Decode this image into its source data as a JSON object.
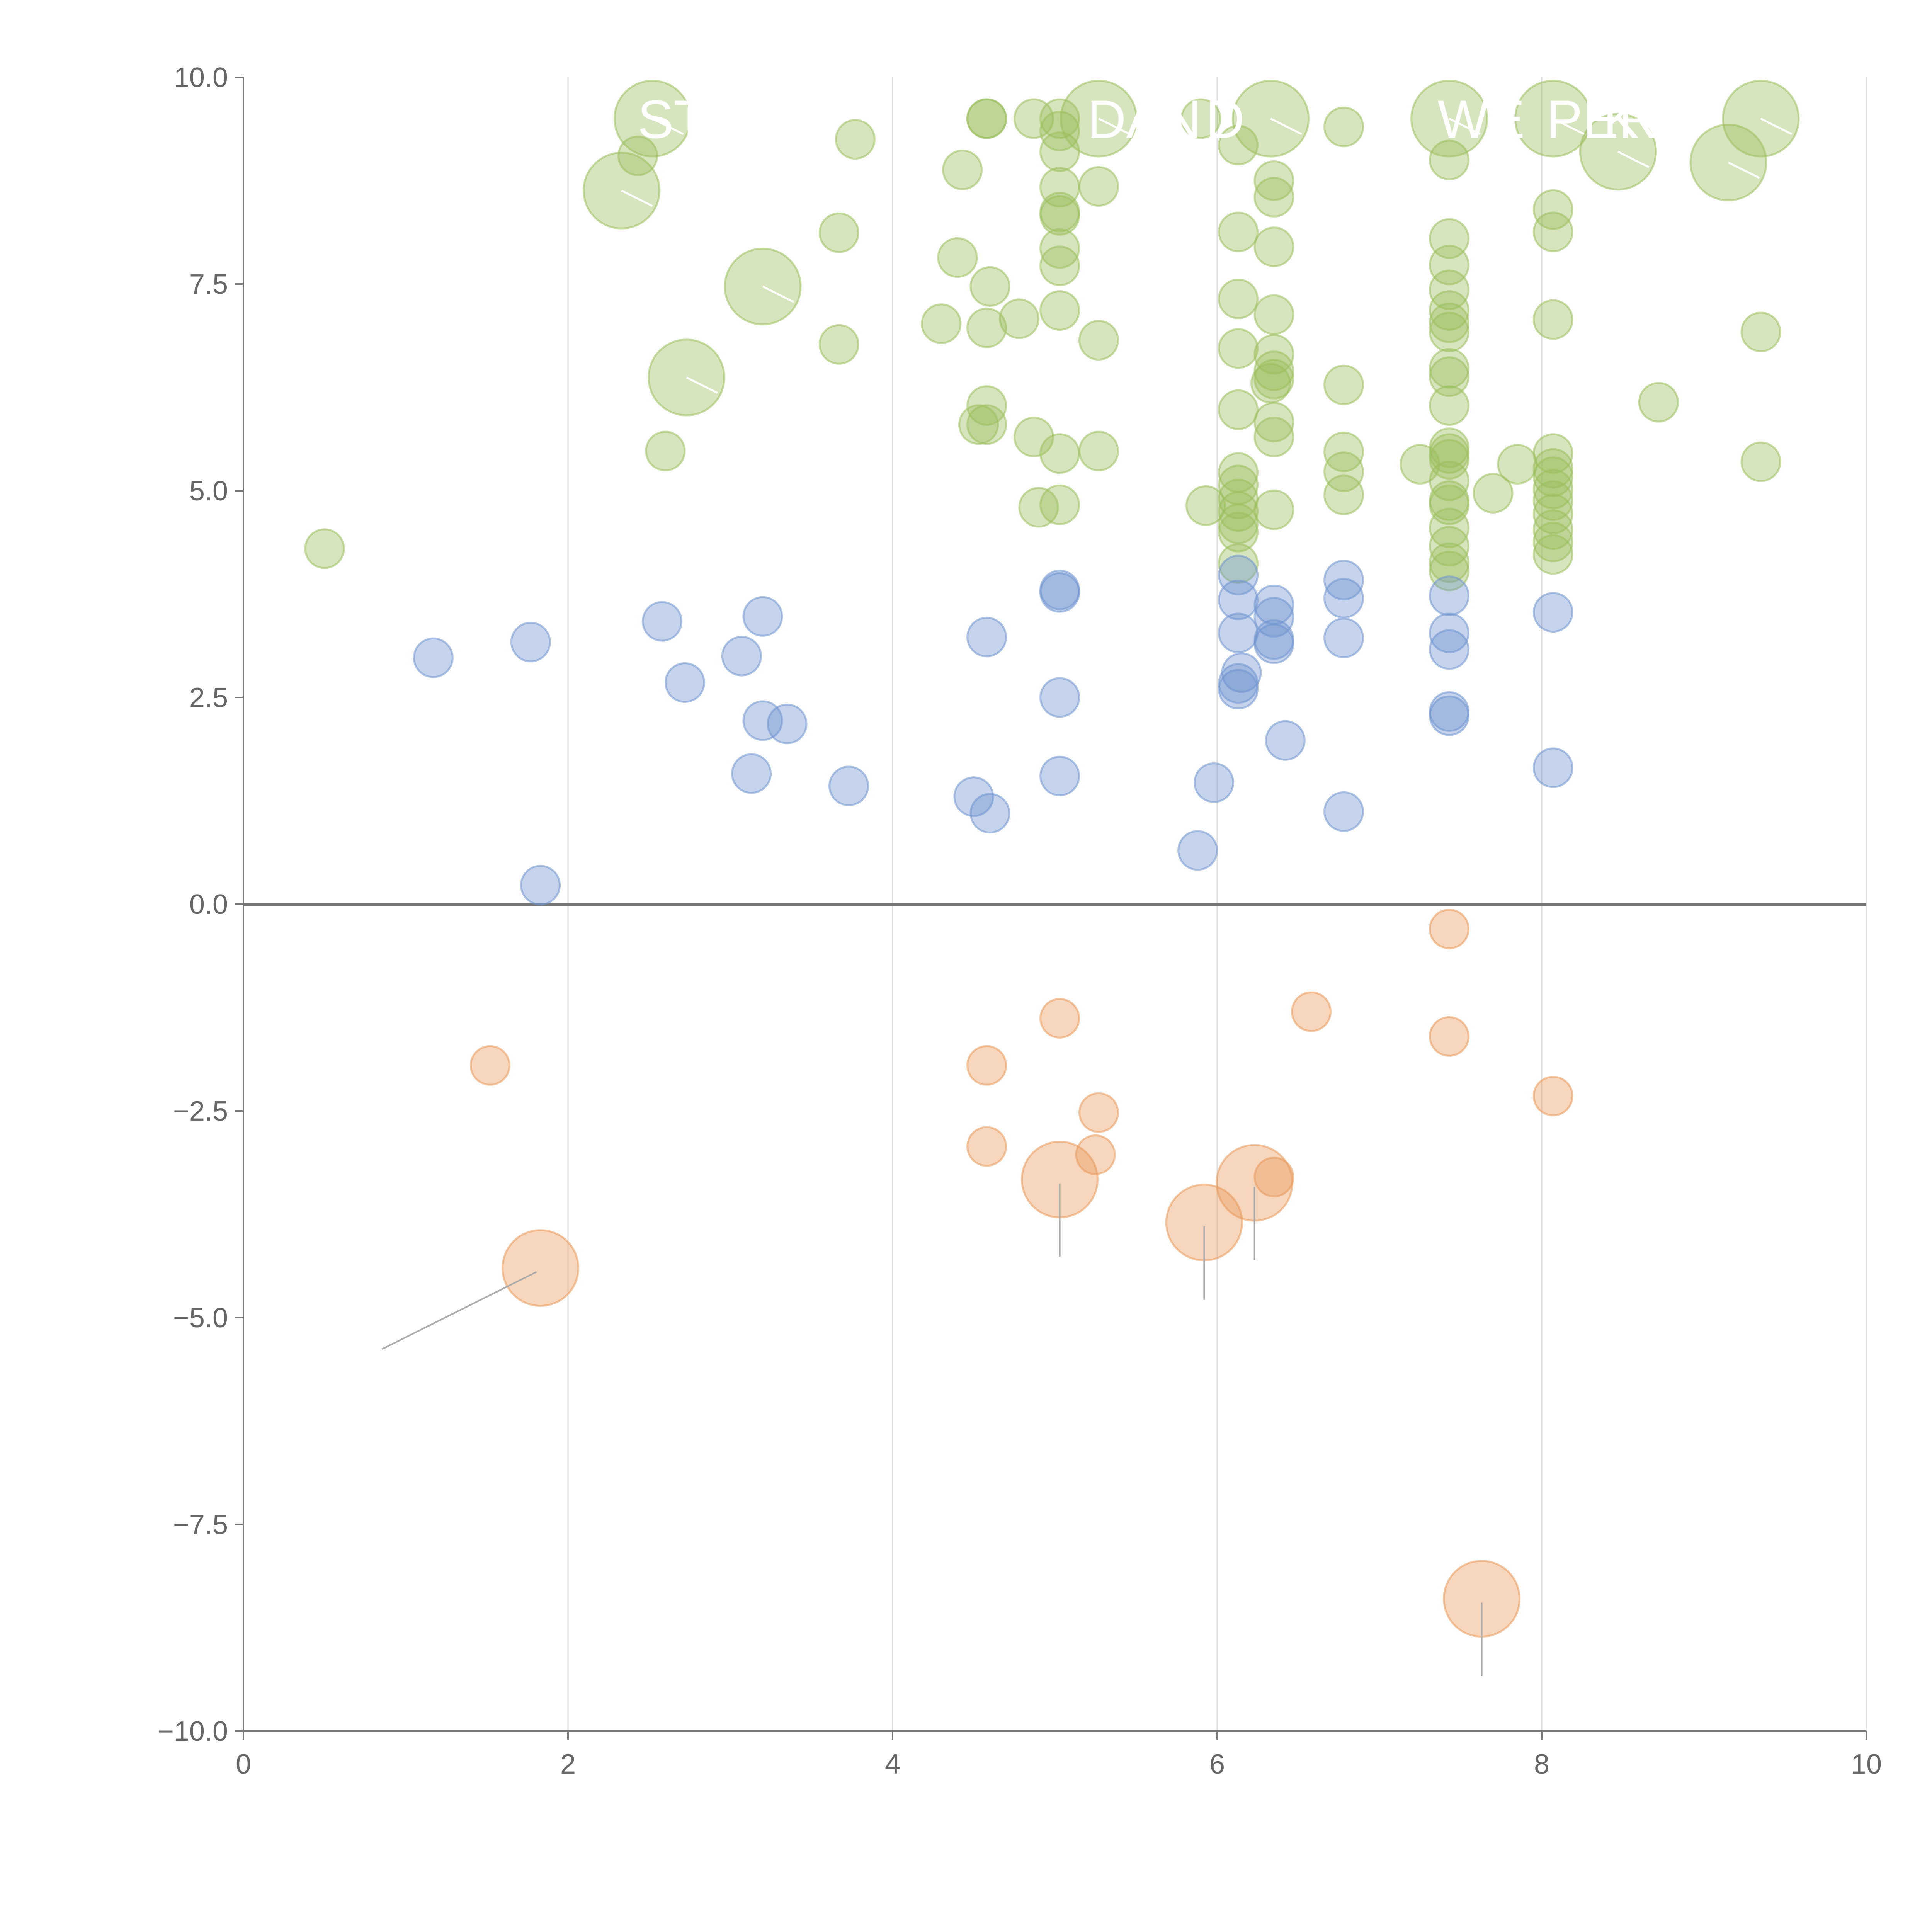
{
  "chart_data": {
    "type": "scatter",
    "xlim": [
      0,
      10
    ],
    "ylim": [
      -10,
      10
    ],
    "x_ticks": [
      "0",
      "2",
      "4",
      "6",
      "8",
      "10"
    ],
    "y_ticks": [
      "10.0",
      "7.5",
      "5.0",
      "2.5",
      "0.0",
      "−2.5",
      "−5.0",
      "−7.5",
      "−10.0"
    ],
    "x_tick_values": [
      0,
      2,
      4,
      6,
      8,
      10
    ],
    "y_tick_values": [
      10,
      7.5,
      5,
      2.5,
      0,
      -2.5,
      -5,
      -7.5,
      -10
    ],
    "grid": "vertical",
    "colors": {
      "green": "#9bbf5c",
      "blue": "#6f93cf",
      "orange": "#e9995a",
      "axis": "#777777",
      "grid": "#dddddd"
    },
    "series": [
      {
        "color": "green",
        "points": [
          {
            "x": 0.5,
            "y": 4.3
          },
          {
            "x": 2.33,
            "y": 8.63,
            "big": 1
          },
          {
            "x": 2.43,
            "y": 9.05
          },
          {
            "x": 2.52,
            "y": 9.5,
            "big": 1
          },
          {
            "x": 2.6,
            "y": 5.48
          },
          {
            "x": 2.73,
            "y": 6.37,
            "big": 1
          },
          {
            "x": 3.2,
            "y": 7.47,
            "big": 1
          },
          {
            "x": 3.67,
            "y": 8.12
          },
          {
            "x": 3.67,
            "y": 6.77
          },
          {
            "x": 3.77,
            "y": 9.25
          },
          {
            "x": 4.3,
            "y": 7.02
          },
          {
            "x": 4.4,
            "y": 7.82
          },
          {
            "x": 4.43,
            "y": 8.88
          },
          {
            "x": 4.53,
            "y": 5.8
          },
          {
            "x": 4.58,
            "y": 9.5
          },
          {
            "x": 4.58,
            "y": 9.5
          },
          {
            "x": 4.58,
            "y": 6.97
          },
          {
            "x": 4.58,
            "y": 6.03
          },
          {
            "x": 4.58,
            "y": 5.8
          },
          {
            "x": 4.6,
            "y": 7.47
          },
          {
            "x": 4.78,
            "y": 7.08
          },
          {
            "x": 4.87,
            "y": 9.5
          },
          {
            "x": 4.87,
            "y": 5.65
          },
          {
            "x": 4.9,
            "y": 4.8
          },
          {
            "x": 5.03,
            "y": 9.5
          },
          {
            "x": 5.03,
            "y": 9.35
          },
          {
            "x": 5.03,
            "y": 9.1
          },
          {
            "x": 5.03,
            "y": 8.67
          },
          {
            "x": 5.03,
            "y": 8.37
          },
          {
            "x": 5.03,
            "y": 8.33
          },
          {
            "x": 5.03,
            "y": 7.93
          },
          {
            "x": 5.03,
            "y": 7.72
          },
          {
            "x": 5.03,
            "y": 7.18
          },
          {
            "x": 5.03,
            "y": 5.45
          },
          {
            "x": 5.03,
            "y": 4.83
          },
          {
            "x": 5.27,
            "y": 9.5,
            "big": 1
          },
          {
            "x": 5.27,
            "y": 8.68
          },
          {
            "x": 5.27,
            "y": 6.82
          },
          {
            "x": 5.27,
            "y": 5.48
          },
          {
            "x": 5.9,
            "y": 9.5
          },
          {
            "x": 5.93,
            "y": 4.82
          },
          {
            "x": 6.13,
            "y": 9.18
          },
          {
            "x": 6.13,
            "y": 8.13
          },
          {
            "x": 6.13,
            "y": 7.32
          },
          {
            "x": 6.13,
            "y": 6.72
          },
          {
            "x": 6.13,
            "y": 5.98
          },
          {
            "x": 6.13,
            "y": 5.22
          },
          {
            "x": 6.13,
            "y": 5.07
          },
          {
            "x": 6.13,
            "y": 4.9
          },
          {
            "x": 6.13,
            "y": 4.75
          },
          {
            "x": 6.13,
            "y": 4.6
          },
          {
            "x": 6.13,
            "y": 4.5
          },
          {
            "x": 6.13,
            "y": 4.12
          },
          {
            "x": 6.33,
            "y": 9.5,
            "big": 1
          },
          {
            "x": 6.33,
            "y": 6.3
          },
          {
            "x": 6.35,
            "y": 8.75
          },
          {
            "x": 6.35,
            "y": 8.55
          },
          {
            "x": 6.35,
            "y": 7.95
          },
          {
            "x": 6.35,
            "y": 7.13
          },
          {
            "x": 6.35,
            "y": 6.65
          },
          {
            "x": 6.35,
            "y": 6.45
          },
          {
            "x": 6.35,
            "y": 6.35
          },
          {
            "x": 6.35,
            "y": 5.83
          },
          {
            "x": 6.35,
            "y": 5.65
          },
          {
            "x": 6.35,
            "y": 4.77
          },
          {
            "x": 6.78,
            "y": 9.4
          },
          {
            "x": 6.78,
            "y": 6.28
          },
          {
            "x": 6.78,
            "y": 5.47
          },
          {
            "x": 6.78,
            "y": 5.23
          },
          {
            "x": 6.78,
            "y": 4.95
          },
          {
            "x": 7.25,
            "y": 5.32
          },
          {
            "x": 7.43,
            "y": 9.5,
            "big": 1
          },
          {
            "x": 7.43,
            "y": 9.0
          },
          {
            "x": 7.43,
            "y": 8.05
          },
          {
            "x": 7.43,
            "y": 7.73
          },
          {
            "x": 7.43,
            "y": 7.43
          },
          {
            "x": 7.43,
            "y": 7.18
          },
          {
            "x": 7.43,
            "y": 7.03
          },
          {
            "x": 7.43,
            "y": 6.92
          },
          {
            "x": 7.43,
            "y": 6.48
          },
          {
            "x": 7.43,
            "y": 6.38
          },
          {
            "x": 7.43,
            "y": 6.03
          },
          {
            "x": 7.43,
            "y": 5.52
          },
          {
            "x": 7.43,
            "y": 5.45
          },
          {
            "x": 7.43,
            "y": 5.38
          },
          {
            "x": 7.43,
            "y": 5.12
          },
          {
            "x": 7.43,
            "y": 4.88
          },
          {
            "x": 7.43,
            "y": 4.83
          },
          {
            "x": 7.43,
            "y": 4.55
          },
          {
            "x": 7.43,
            "y": 4.33
          },
          {
            "x": 7.43,
            "y": 4.13
          },
          {
            "x": 7.43,
            "y": 4.03
          },
          {
            "x": 7.7,
            "y": 4.97
          },
          {
            "x": 7.85,
            "y": 5.32
          },
          {
            "x": 8.07,
            "y": 9.5,
            "big": 1
          },
          {
            "x": 8.07,
            "y": 8.4
          },
          {
            "x": 8.07,
            "y": 8.13
          },
          {
            "x": 8.07,
            "y": 7.07
          },
          {
            "x": 8.07,
            "y": 5.45
          },
          {
            "x": 8.07,
            "y": 5.27
          },
          {
            "x": 8.07,
            "y": 5.17
          },
          {
            "x": 8.07,
            "y": 5.02
          },
          {
            "x": 8.07,
            "y": 4.88
          },
          {
            "x": 8.07,
            "y": 4.72
          },
          {
            "x": 8.07,
            "y": 4.53
          },
          {
            "x": 8.07,
            "y": 4.38
          },
          {
            "x": 8.07,
            "y": 4.23
          },
          {
            "x": 8.47,
            "y": 9.1,
            "big": 1
          },
          {
            "x": 8.72,
            "y": 6.07
          },
          {
            "x": 9.15,
            "y": 8.97,
            "big": 1
          },
          {
            "x": 9.35,
            "y": 9.5,
            "big": 1
          },
          {
            "x": 9.35,
            "y": 6.92
          },
          {
            "x": 9.35,
            "y": 5.35
          }
        ]
      },
      {
        "color": "blue",
        "points": [
          {
            "x": 1.17,
            "y": 2.98
          },
          {
            "x": 1.77,
            "y": 3.17
          },
          {
            "x": 1.83,
            "y": 0.23
          },
          {
            "x": 2.58,
            "y": 3.42
          },
          {
            "x": 2.72,
            "y": 2.68
          },
          {
            "x": 3.07,
            "y": 3.0
          },
          {
            "x": 3.13,
            "y": 1.58
          },
          {
            "x": 3.2,
            "y": 3.48
          },
          {
            "x": 3.2,
            "y": 2.22
          },
          {
            "x": 3.35,
            "y": 2.18
          },
          {
            "x": 3.73,
            "y": 1.43
          },
          {
            "x": 4.5,
            "y": 1.3
          },
          {
            "x": 4.58,
            "y": 3.23
          },
          {
            "x": 4.6,
            "y": 1.1
          },
          {
            "x": 5.03,
            "y": 3.8
          },
          {
            "x": 5.03,
            "y": 3.77
          },
          {
            "x": 5.03,
            "y": 2.5
          },
          {
            "x": 5.03,
            "y": 1.55
          },
          {
            "x": 5.88,
            "y": 0.65
          },
          {
            "x": 5.98,
            "y": 1.47
          },
          {
            "x": 6.13,
            "y": 3.98
          },
          {
            "x": 6.13,
            "y": 3.68
          },
          {
            "x": 6.13,
            "y": 3.28
          },
          {
            "x": 6.15,
            "y": 2.8
          },
          {
            "x": 6.13,
            "y": 2.67
          },
          {
            "x": 6.13,
            "y": 2.6
          },
          {
            "x": 6.35,
            "y": 3.62
          },
          {
            "x": 6.35,
            "y": 3.47
          },
          {
            "x": 6.35,
            "y": 3.2
          },
          {
            "x": 6.35,
            "y": 3.15
          },
          {
            "x": 6.42,
            "y": 1.98
          },
          {
            "x": 6.78,
            "y": 3.92
          },
          {
            "x": 6.78,
            "y": 3.7
          },
          {
            "x": 6.78,
            "y": 3.22
          },
          {
            "x": 6.78,
            "y": 1.12
          },
          {
            "x": 7.43,
            "y": 3.73
          },
          {
            "x": 7.43,
            "y": 3.28
          },
          {
            "x": 7.43,
            "y": 3.08
          },
          {
            "x": 7.43,
            "y": 2.33
          },
          {
            "x": 7.43,
            "y": 2.28
          },
          {
            "x": 8.07,
            "y": 3.53
          },
          {
            "x": 8.07,
            "y": 1.65
          }
        ]
      },
      {
        "color": "orange",
        "points": [
          {
            "x": 1.52,
            "y": -1.95
          },
          {
            "x": 1.83,
            "y": -4.4,
            "big": 1
          },
          {
            "x": 4.58,
            "y": -1.95
          },
          {
            "x": 4.58,
            "y": -2.93
          },
          {
            "x": 5.03,
            "y": -1.38
          },
          {
            "x": 5.03,
            "y": -3.33,
            "big": 1
          },
          {
            "x": 5.25,
            "y": -3.03
          },
          {
            "x": 5.27,
            "y": -2.52
          },
          {
            "x": 5.92,
            "y": -3.85,
            "big": 1
          },
          {
            "x": 6.23,
            "y": -3.37,
            "big": 1
          },
          {
            "x": 6.35,
            "y": -3.3
          },
          {
            "x": 6.58,
            "y": -1.3
          },
          {
            "x": 7.43,
            "y": -0.3
          },
          {
            "x": 7.43,
            "y": -1.6
          },
          {
            "x": 7.63,
            "y": -8.4,
            "big": 1
          },
          {
            "x": 8.07,
            "y": -2.32
          }
        ]
      }
    ],
    "bubble_text": [
      {
        "text": "ST",
        "x": 2.5,
        "y": 9.5
      },
      {
        "text": "DAN",
        "x": 5.27,
        "y": 9.5
      },
      {
        "text": "D",
        "x": 6.0,
        "y": 9.5
      },
      {
        "text": "WE",
        "x": 7.43,
        "y": 9.5
      },
      {
        "text": "PER",
        "x": 8.1,
        "y": 9.5
      },
      {
        "text": "K",
        "x": 8.45,
        "y": 9.5
      }
    ]
  }
}
